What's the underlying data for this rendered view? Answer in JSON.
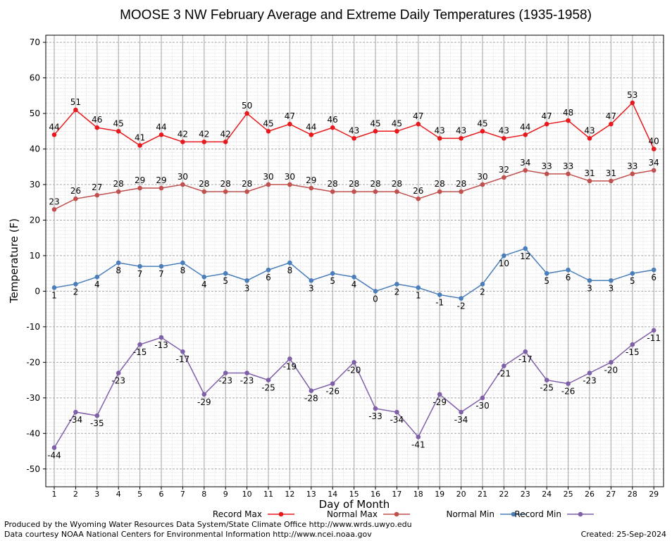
{
  "chart_data": {
    "type": "line",
    "title": "MOOSE 3 NW February Average and Extreme Daily Temperatures (1935-1958)",
    "xlabel": "Day of Month",
    "ylabel": "Temperature (F)",
    "ylim": [
      -55,
      72
    ],
    "yticks": [
      -50,
      -40,
      -30,
      -20,
      -10,
      0,
      10,
      20,
      30,
      40,
      50,
      60,
      70
    ],
    "grid": true,
    "legend_position": "bottom",
    "x": [
      1,
      2,
      3,
      4,
      5,
      6,
      7,
      8,
      9,
      10,
      11,
      12,
      13,
      14,
      15,
      16,
      17,
      18,
      19,
      20,
      21,
      22,
      23,
      24,
      25,
      26,
      27,
      28,
      29
    ],
    "series": [
      {
        "name": "Record Max",
        "color": "#e8191c",
        "label_position": "above",
        "values": [
          44,
          51,
          46,
          45,
          41,
          44,
          42,
          42,
          42,
          50,
          45,
          47,
          44,
          46,
          43,
          45,
          45,
          47,
          43,
          43,
          45,
          43,
          44,
          47,
          48,
          43,
          47,
          53,
          40
        ]
      },
      {
        "name": "Normal Max",
        "color": "#c0504d",
        "label_position": "above",
        "values": [
          23,
          26,
          27,
          28,
          29,
          29,
          30,
          28,
          28,
          28,
          30,
          30,
          29,
          28,
          28,
          28,
          28,
          26,
          28,
          28,
          30,
          32,
          34,
          33,
          33,
          31,
          31,
          33,
          34
        ]
      },
      {
        "name": "Normal Min",
        "color": "#4a7ebb",
        "label_position": "below",
        "values": [
          1,
          2,
          4,
          8,
          7,
          7,
          8,
          4,
          5,
          3,
          6,
          8,
          3,
          5,
          4,
          0,
          2,
          1,
          -1,
          -2,
          2,
          10,
          12,
          5,
          6,
          3,
          3,
          5,
          6
        ]
      },
      {
        "name": "Record Min",
        "color": "#7f5fa8",
        "label_position": "below",
        "values": [
          -44,
          -34,
          -35,
          -23,
          -15,
          -13,
          -17,
          -29,
          -23,
          -23,
          -25,
          -19,
          -28,
          -26,
          -20,
          -33,
          -34,
          -41,
          -29,
          -34,
          -30,
          -21,
          -17,
          -25,
          -26,
          -23,
          -20,
          -15,
          -11
        ]
      }
    ]
  },
  "footer": {
    "produced_by": "Produced by the Wyoming Water Resources Data System/State Climate Office http://www.wrds.uwyo.edu",
    "data_courtesy": "Data courtesy NOAA National Centers for Environmental Information http://www.ncei.noaa.gov",
    "created": "Created:  25-Sep-2024"
  }
}
